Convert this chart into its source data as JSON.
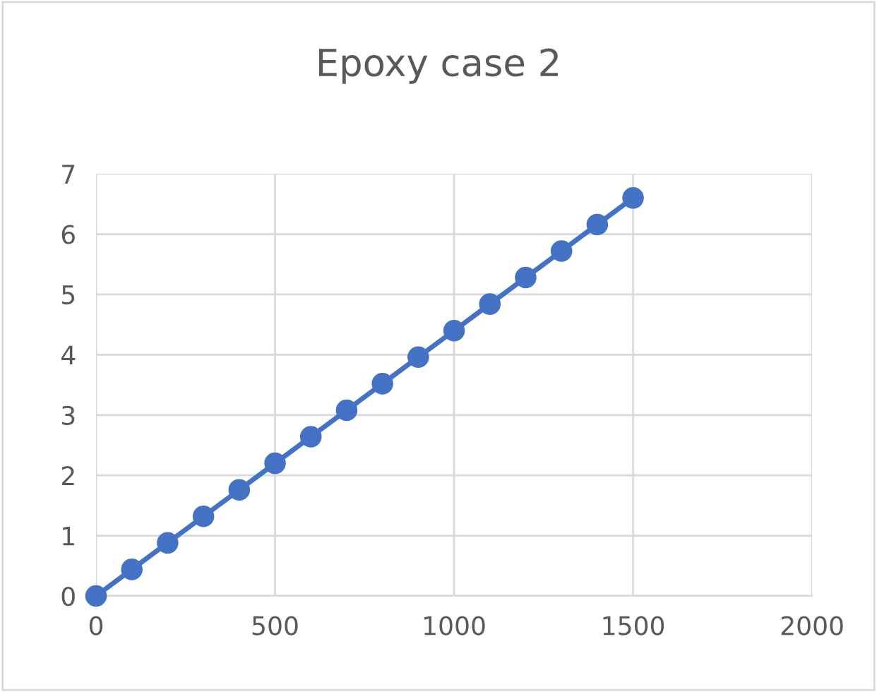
{
  "chart_data": {
    "type": "line",
    "title": "Epoxy case 2",
    "x": [
      0,
      100,
      200,
      300,
      400,
      500,
      600,
      700,
      800,
      900,
      1000,
      1100,
      1200,
      1300,
      1400,
      1500
    ],
    "series": [
      {
        "color": "#4472c4",
        "values": [
          0,
          0.44,
          0.88,
          1.32,
          1.76,
          2.2,
          2.64,
          3.08,
          3.52,
          3.96,
          4.4,
          4.84,
          5.28,
          5.72,
          6.16,
          6.6
        ]
      }
    ],
    "xlim": [
      0,
      2000
    ],
    "xticks": [
      0,
      500,
      1000,
      1500,
      2000
    ],
    "ylim": [
      0,
      7
    ],
    "yticks": [
      0,
      1,
      2,
      3,
      4,
      5,
      6,
      7
    ],
    "grid": true,
    "marker": "circle",
    "line_style": "solid"
  }
}
